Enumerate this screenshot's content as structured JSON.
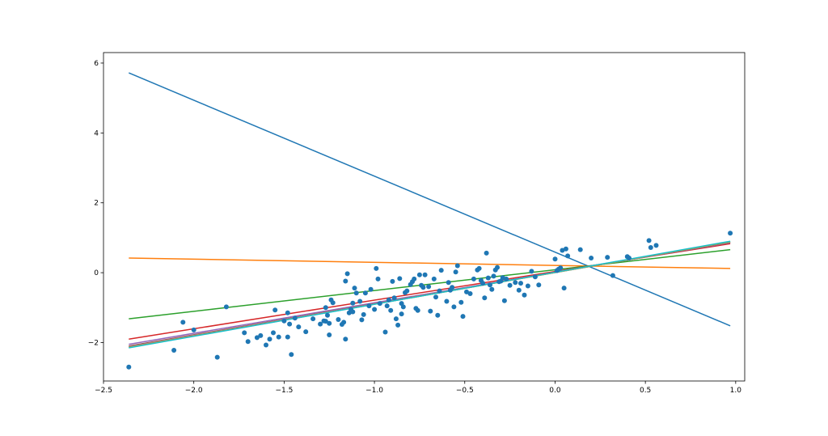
{
  "chart_data": {
    "type": "scatter",
    "title": "",
    "xlabel": "",
    "ylabel": "",
    "xlim": [
      -2.5,
      1.05
    ],
    "ylim": [
      -3.1,
      6.3
    ],
    "grid": false,
    "legend": "none",
    "x_ticks": [
      -2.5,
      -2.0,
      -1.5,
      -1.0,
      -0.5,
      0.0,
      0.5,
      1.0
    ],
    "x_tick_labels": [
      "−2.5",
      "−2.0",
      "−1.5",
      "−1.0",
      "−0.5",
      "0.0",
      "0.5",
      "1.0"
    ],
    "y_ticks": [
      -2,
      0,
      2,
      4,
      6
    ],
    "y_tick_labels": [
      "−2",
      "0",
      "2",
      "4",
      "6"
    ],
    "scatter": {
      "color": "#1f77b4",
      "points": [
        [
          -2.36,
          -2.7
        ],
        [
          -2.11,
          -2.22
        ],
        [
          -2.06,
          -1.42
        ],
        [
          -2.0,
          -1.64
        ],
        [
          -1.87,
          -2.42
        ],
        [
          -1.82,
          -0.98
        ],
        [
          -1.72,
          -1.72
        ],
        [
          -1.7,
          -1.97
        ],
        [
          -1.65,
          -1.86
        ],
        [
          -1.63,
          -1.8
        ],
        [
          -1.6,
          -2.07
        ],
        [
          -1.58,
          -1.9
        ],
        [
          -1.56,
          -1.72
        ],
        [
          -1.55,
          -1.07
        ],
        [
          -1.53,
          -1.84
        ],
        [
          -1.5,
          -1.38
        ],
        [
          -1.48,
          -1.84
        ],
        [
          -1.48,
          -1.15
        ],
        [
          -1.47,
          -1.47
        ],
        [
          -1.46,
          -2.34
        ],
        [
          -1.44,
          -1.3
        ],
        [
          -1.42,
          -1.55
        ],
        [
          -1.38,
          -1.69
        ],
        [
          -1.34,
          -1.32
        ],
        [
          -1.3,
          -1.47
        ],
        [
          -1.28,
          -1.38
        ],
        [
          -1.27,
          -1.39
        ],
        [
          -1.27,
          -1.0
        ],
        [
          -1.26,
          -1.22
        ],
        [
          -1.25,
          -1.45
        ],
        [
          -1.25,
          -1.78
        ],
        [
          -1.24,
          -0.78
        ],
        [
          -1.23,
          -0.86
        ],
        [
          -1.2,
          -1.34
        ],
        [
          -1.18,
          -1.48
        ],
        [
          -1.17,
          -1.42
        ],
        [
          -1.16,
          -1.9
        ],
        [
          -1.16,
          -0.24
        ],
        [
          -1.15,
          -0.03
        ],
        [
          -1.14,
          -1.15
        ],
        [
          -1.13,
          -1.05
        ],
        [
          -1.12,
          -1.12
        ],
        [
          -1.12,
          -0.87
        ],
        [
          -1.11,
          -0.44
        ],
        [
          -1.1,
          -0.58
        ],
        [
          -1.08,
          -0.82
        ],
        [
          -1.07,
          -1.35
        ],
        [
          -1.06,
          -1.2
        ],
        [
          -1.05,
          -0.58
        ],
        [
          -1.03,
          -0.95
        ],
        [
          -1.02,
          -0.48
        ],
        [
          -1.0,
          -1.05
        ],
        [
          -0.99,
          0.12
        ],
        [
          -0.98,
          -0.18
        ],
        [
          -0.97,
          -0.88
        ],
        [
          -0.94,
          -1.7
        ],
        [
          -0.93,
          -0.95
        ],
        [
          -0.92,
          -0.78
        ],
        [
          -0.91,
          -1.08
        ],
        [
          -0.9,
          -0.25
        ],
        [
          -0.89,
          -0.72
        ],
        [
          -0.88,
          -1.32
        ],
        [
          -0.87,
          -1.5
        ],
        [
          -0.86,
          -0.17
        ],
        [
          -0.85,
          -0.88
        ],
        [
          -0.85,
          -1.18
        ],
        [
          -0.84,
          -0.98
        ],
        [
          -0.83,
          -0.57
        ],
        [
          -0.82,
          -0.52
        ],
        [
          -0.8,
          -0.34
        ],
        [
          -0.79,
          -0.26
        ],
        [
          -0.78,
          -0.18
        ],
        [
          -0.77,
          -1.02
        ],
        [
          -0.76,
          -1.08
        ],
        [
          -0.75,
          -0.06
        ],
        [
          -0.74,
          -0.36
        ],
        [
          -0.73,
          -0.42
        ],
        [
          -0.72,
          -0.06
        ],
        [
          -0.7,
          -0.4
        ],
        [
          -0.69,
          -1.1
        ],
        [
          -0.67,
          -0.18
        ],
        [
          -0.66,
          -0.7
        ],
        [
          -0.65,
          -1.22
        ],
        [
          -0.64,
          -0.52
        ],
        [
          -0.63,
          0.07
        ],
        [
          -0.6,
          -0.82
        ],
        [
          -0.59,
          -0.28
        ],
        [
          -0.58,
          -0.5
        ],
        [
          -0.57,
          -0.42
        ],
        [
          -0.56,
          -0.98
        ],
        [
          -0.55,
          0.02
        ],
        [
          -0.54,
          0.2
        ],
        [
          -0.52,
          -0.85
        ],
        [
          -0.51,
          -1.25
        ],
        [
          -0.49,
          -0.55
        ],
        [
          -0.47,
          -0.6
        ],
        [
          -0.45,
          -0.18
        ],
        [
          -0.43,
          0.08
        ],
        [
          -0.42,
          0.12
        ],
        [
          -0.41,
          -0.22
        ],
        [
          -0.4,
          -0.3
        ],
        [
          -0.39,
          -0.72
        ],
        [
          -0.38,
          0.56
        ],
        [
          -0.37,
          -0.15
        ],
        [
          -0.36,
          -0.35
        ],
        [
          -0.35,
          -0.48
        ],
        [
          -0.34,
          -0.1
        ],
        [
          -0.33,
          0.08
        ],
        [
          -0.32,
          0.15
        ],
        [
          -0.31,
          -0.26
        ],
        [
          -0.3,
          -0.24
        ],
        [
          -0.29,
          -0.14
        ],
        [
          -0.28,
          -0.8
        ],
        [
          -0.27,
          -0.18
        ],
        [
          -0.25,
          -0.36
        ],
        [
          -0.22,
          -0.28
        ],
        [
          -0.2,
          -0.5
        ],
        [
          -0.19,
          -0.3
        ],
        [
          -0.17,
          -0.64
        ],
        [
          -0.15,
          -0.38
        ],
        [
          -0.13,
          0.04
        ],
        [
          -0.11,
          -0.12
        ],
        [
          -0.09,
          -0.35
        ],
        [
          0.0,
          0.39
        ],
        [
          0.01,
          0.06
        ],
        [
          0.02,
          0.1
        ],
        [
          0.03,
          0.14
        ],
        [
          0.04,
          0.64
        ],
        [
          0.05,
          -0.44
        ],
        [
          0.06,
          0.68
        ],
        [
          0.07,
          0.48
        ],
        [
          0.14,
          0.66
        ],
        [
          0.2,
          0.42
        ],
        [
          0.29,
          0.44
        ],
        [
          0.32,
          -0.08
        ],
        [
          0.4,
          0.46
        ],
        [
          0.41,
          0.42
        ],
        [
          0.52,
          0.92
        ],
        [
          0.53,
          0.72
        ],
        [
          0.56,
          0.78
        ],
        [
          0.97,
          1.13
        ]
      ]
    },
    "series": [
      {
        "color": "#1f77b4",
        "x": [
          -2.36,
          0.97
        ],
        "y": [
          5.72,
          -1.52
        ]
      },
      {
        "color": "#ff7f0e",
        "x": [
          -2.36,
          0.97
        ],
        "y": [
          0.42,
          0.12
        ]
      },
      {
        "color": "#2ca02c",
        "x": [
          -2.36,
          0.97
        ],
        "y": [
          -1.32,
          0.66
        ]
      },
      {
        "color": "#d62728",
        "x": [
          -2.36,
          0.97
        ],
        "y": [
          -1.9,
          0.83
        ]
      },
      {
        "color": "#9467bd",
        "x": [
          -2.36,
          0.97
        ],
        "y": [
          -2.05,
          0.86
        ]
      },
      {
        "color": "#8c564b",
        "x": [
          -2.36,
          0.97
        ],
        "y": [
          -2.1,
          0.87
        ]
      },
      {
        "color": "#e377c2",
        "x": [
          -2.36,
          0.97
        ],
        "y": [
          -2.12,
          0.88
        ]
      },
      {
        "color": "#7f7f7f",
        "x": [
          -2.36,
          0.97
        ],
        "y": [
          -2.13,
          0.88
        ]
      },
      {
        "color": "#bcbd22",
        "x": [
          -2.36,
          0.97
        ],
        "y": [
          -2.14,
          0.89
        ]
      },
      {
        "color": "#17becf",
        "x": [
          -2.36,
          0.97
        ],
        "y": [
          -2.15,
          0.9
        ]
      }
    ]
  }
}
